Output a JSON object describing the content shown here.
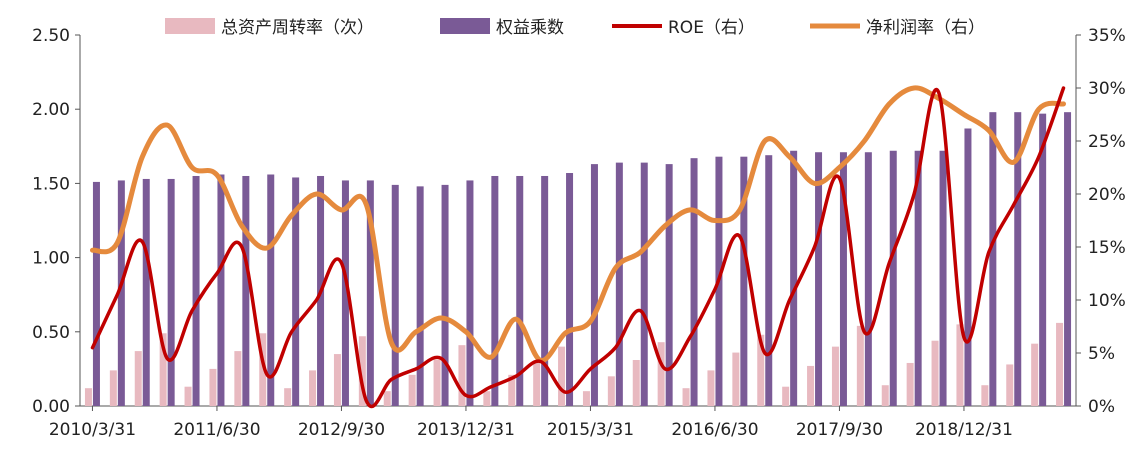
{
  "chart_data": {
    "type": "bar",
    "title": "",
    "xlabel": "",
    "ylabel": "",
    "ylabel_right": "",
    "ylim": [
      0,
      2.5
    ],
    "ylim_right": [
      0,
      35
    ],
    "grid": false,
    "legend_position": "top",
    "yticks_left": [
      "0.00",
      "0.50",
      "1.00",
      "1.50",
      "2.00",
      "2.50"
    ],
    "yticks_right": [
      "0%",
      "5%",
      "10%",
      "15%",
      "20%",
      "25%",
      "30%",
      "35%"
    ],
    "x_tick_labels": [
      "2010/3/31",
      "2011/6/30",
      "2012/9/30",
      "2013/12/31",
      "2015/3/31",
      "2016/6/30",
      "2017/9/30",
      "2018/12/31"
    ],
    "x_tick_indices": [
      0,
      5,
      10,
      15,
      20,
      25,
      30,
      35
    ],
    "quarters": 40,
    "colors": {
      "asset_turnover": "#e8b9c0",
      "equity_multiplier": "#7a5a96",
      "roe": "#c00000",
      "net_margin": "#e58a3d",
      "axis": "#555555"
    },
    "series": [
      {
        "name": "总资产周转率（次）",
        "axis": "left",
        "type": "bar",
        "values": [
          0.12,
          0.24,
          0.37,
          0.49,
          0.13,
          0.25,
          0.37,
          0.49,
          0.12,
          0.24,
          0.35,
          0.47,
          0.1,
          0.21,
          0.31,
          0.41,
          0.1,
          0.21,
          0.3,
          0.4,
          0.1,
          0.2,
          0.31,
          0.43,
          0.12,
          0.24,
          0.36,
          0.48,
          0.13,
          0.27,
          0.4,
          0.54,
          0.14,
          0.29,
          0.44,
          0.55,
          0.14,
          0.28,
          0.42,
          0.56
        ]
      },
      {
        "name": "权益乘数",
        "axis": "left",
        "type": "bar",
        "values": [
          1.51,
          1.52,
          1.53,
          1.53,
          1.55,
          1.56,
          1.55,
          1.56,
          1.54,
          1.55,
          1.52,
          1.52,
          1.49,
          1.48,
          1.49,
          1.52,
          1.55,
          1.55,
          1.55,
          1.57,
          1.63,
          1.64,
          1.64,
          1.63,
          1.67,
          1.68,
          1.68,
          1.69,
          1.72,
          1.71,
          1.71,
          1.71,
          1.72,
          1.72,
          1.72,
          1.87,
          1.98,
          1.98,
          1.97,
          1.98
        ]
      },
      {
        "name": "ROE（右）",
        "axis": "right",
        "type": "line",
        "values": [
          5.5,
          10.5,
          15.5,
          4.5,
          9.0,
          12.5,
          15.0,
          3.0,
          7.0,
          10.0,
          13.5,
          0.5,
          2.5,
          3.5,
          4.5,
          1.0,
          1.8,
          2.8,
          4.2,
          1.3,
          3.5,
          5.5,
          9.0,
          3.5,
          6.5,
          11.0,
          16.0,
          5.0,
          10.0,
          15.0,
          21.5,
          7.0,
          13.5,
          20.0,
          29.5,
          6.5,
          14.5,
          19.0,
          23.5,
          30.0
        ]
      },
      {
        "name": "净利润率（右）",
        "axis": "right",
        "type": "line",
        "values": [
          14.7,
          15.4,
          23.5,
          26.5,
          22.5,
          21.8,
          17.0,
          14.9,
          18.0,
          20.0,
          18.5,
          19.0,
          6.0,
          7.0,
          8.3,
          7.0,
          4.6,
          8.2,
          4.3,
          6.9,
          8.0,
          13.0,
          14.5,
          17.0,
          18.5,
          17.5,
          18.5,
          25.0,
          23.5,
          21.0,
          22.5,
          25.0,
          28.5,
          30.0,
          29.0,
          27.5,
          26.0,
          23.0,
          28.0,
          28.5
        ]
      }
    ]
  }
}
